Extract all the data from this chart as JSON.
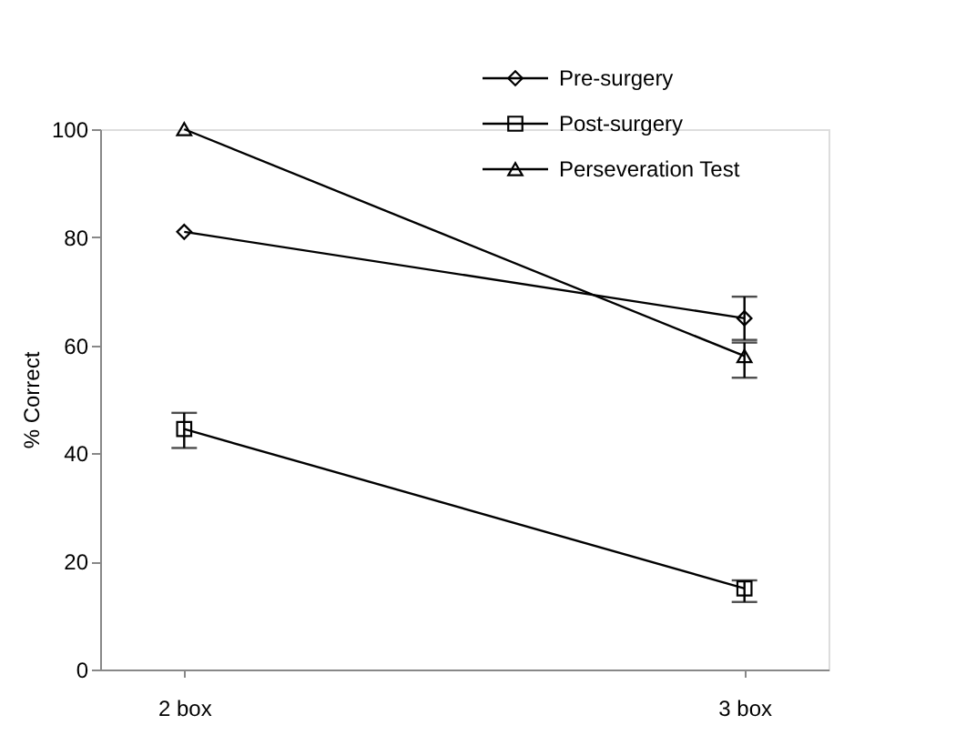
{
  "chart_data": {
    "type": "line",
    "ylabel": "% Correct",
    "categories": [
      "2 box",
      "3 box"
    ],
    "ylim": [
      0,
      100
    ],
    "yticks": [
      0,
      20,
      40,
      60,
      80,
      100
    ],
    "grid": false,
    "legend": "top right",
    "line_style": "solid",
    "series": [
      {
        "name": "Pre-surgery",
        "color": "#000000",
        "marker": "diamond",
        "values": [
          81,
          65
        ],
        "errors": [
          null,
          [
            61,
            69
          ]
        ]
      },
      {
        "name": "Post-surgery",
        "color": "#000000",
        "marker": "square",
        "values": [
          44.5,
          15
        ],
        "errors": [
          [
            41,
            47.5
          ],
          [
            12.5,
            16.5
          ]
        ]
      },
      {
        "name": "Perseveration Test",
        "color": "#000000",
        "marker": "triangle",
        "values": [
          100,
          58
        ],
        "errors": [
          null,
          [
            54,
            60.5
          ]
        ]
      }
    ]
  }
}
